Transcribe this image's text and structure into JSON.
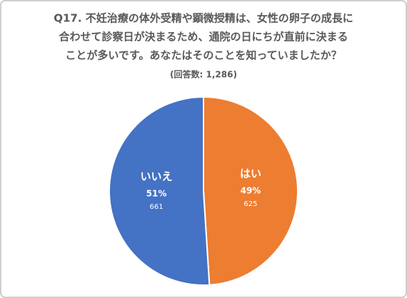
{
  "chart_data": {
    "type": "pie",
    "title": [
      "Q17. 不妊治療の体外受精や顕微授精は、女性の卵子の成長に",
      "合わせて診察日が決まるため、通院の日にちが直前に決まる",
      "ことが多いです。あなたはそのことを知っていましたか？"
    ],
    "subtitle": "(回答数: 1,286)",
    "categories": [
      "はい",
      "いいえ"
    ],
    "values": [
      49,
      51
    ],
    "value_labels": [
      "49%",
      "51%"
    ],
    "counts": [
      625,
      661
    ],
    "colors": [
      "#ed7d31",
      "#4472c4"
    ]
  }
}
